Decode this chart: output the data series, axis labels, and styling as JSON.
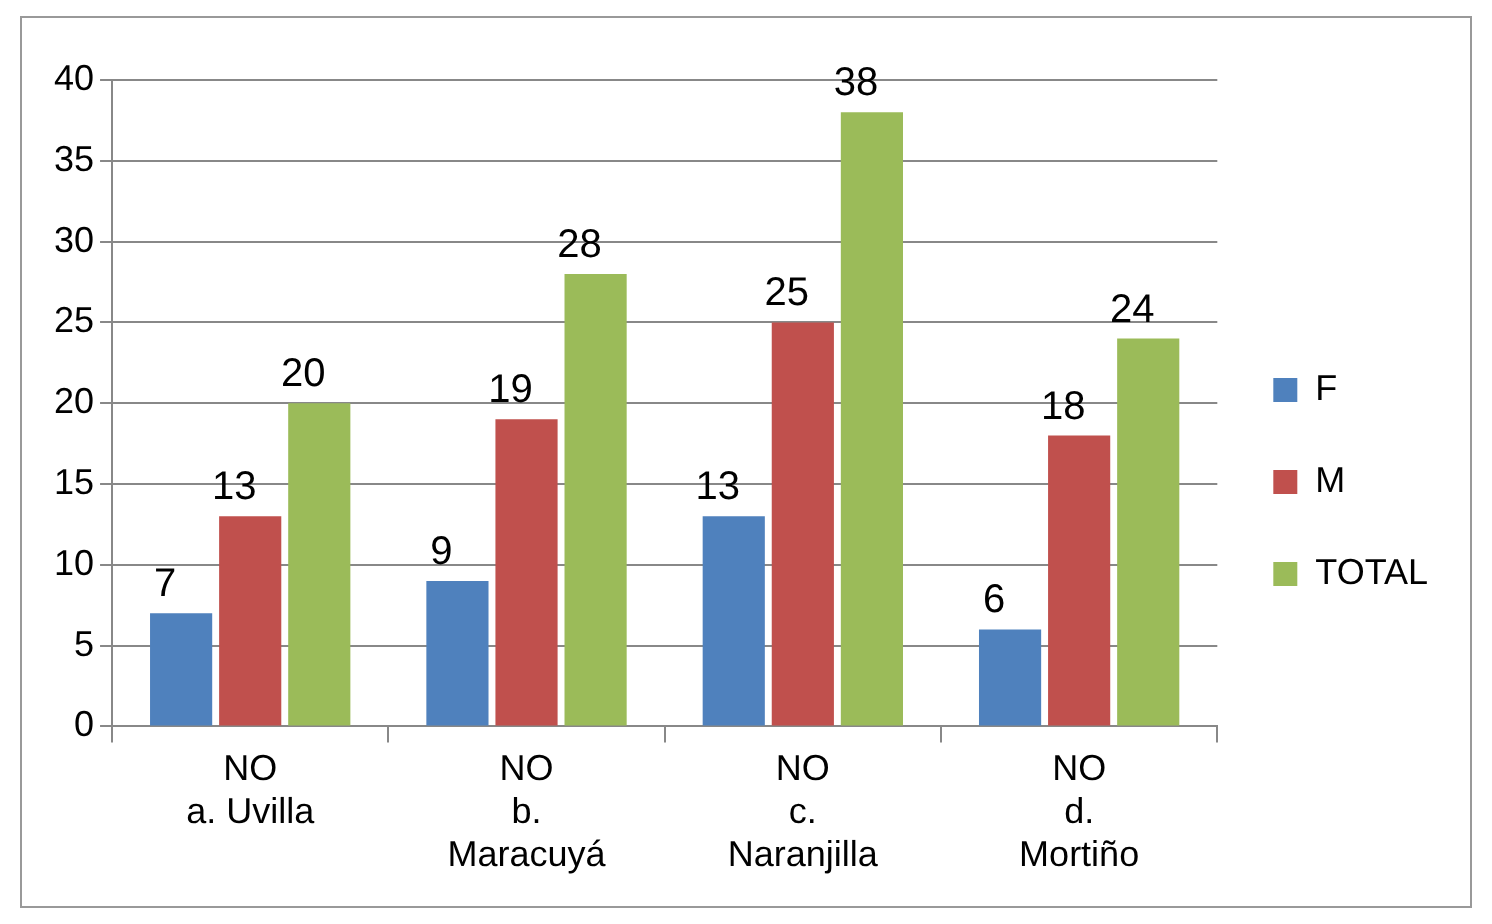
{
  "chart_data": {
    "type": "bar",
    "categories": [
      "NO\na. Uvilla",
      "NO\nb. Maracuyá",
      "NO\nc. Naranjilla",
      "NO\nd. Mortiño"
    ],
    "series": [
      {
        "name": "F",
        "color": "#4f81bd",
        "values": [
          7,
          9,
          13,
          6
        ]
      },
      {
        "name": "M",
        "color": "#c0504d",
        "values": [
          13,
          19,
          25,
          18
        ]
      },
      {
        "name": "TOTAL",
        "color": "#9bbb59",
        "values": [
          20,
          28,
          38,
          24
        ]
      }
    ],
    "ylim": [
      0,
      40
    ],
    "yticks": [
      0,
      5,
      10,
      15,
      20,
      25,
      30,
      35,
      40
    ],
    "grid": "y",
    "legend": "right",
    "data_labels": true
  }
}
